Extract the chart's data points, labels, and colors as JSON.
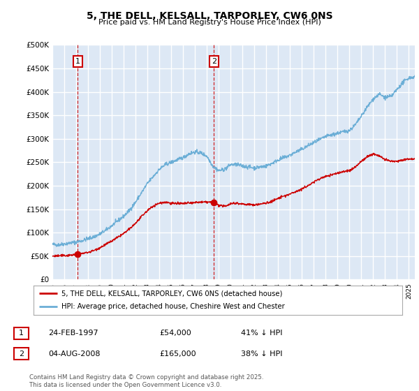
{
  "title": "5, THE DELL, KELSALL, TARPORLEY, CW6 0NS",
  "subtitle": "Price paid vs. HM Land Registry's House Price Index (HPI)",
  "ylim": [
    0,
    500000
  ],
  "yticks": [
    0,
    50000,
    100000,
    150000,
    200000,
    250000,
    300000,
    350000,
    400000,
    450000,
    500000
  ],
  "xlim_start": 1995.0,
  "xlim_end": 2025.5,
  "bg_color": "#dde8f5",
  "grid_color": "#ffffff",
  "hpi_color": "#6baed6",
  "price_color": "#cc0000",
  "dashed_line_color": "#cc0000",
  "transaction1_x": 1997.13,
  "transaction1_y": 54000,
  "transaction2_x": 2008.59,
  "transaction2_y": 165000,
  "legend_price_label": "5, THE DELL, KELSALL, TARPORLEY, CW6 0NS (detached house)",
  "legend_hpi_label": "HPI: Average price, detached house, Cheshire West and Chester",
  "xtick_years": [
    1995,
    1996,
    1997,
    1998,
    1999,
    2000,
    2001,
    2002,
    2003,
    2004,
    2005,
    2006,
    2007,
    2008,
    2009,
    2010,
    2011,
    2012,
    2013,
    2014,
    2015,
    2016,
    2017,
    2018,
    2019,
    2020,
    2021,
    2022,
    2023,
    2024,
    2025
  ],
  "hpi_anchors": [
    [
      1995.0,
      75000
    ],
    [
      1995.5,
      74000
    ],
    [
      1996.0,
      76000
    ],
    [
      1996.5,
      78000
    ],
    [
      1997.0,
      80000
    ],
    [
      1997.5,
      83000
    ],
    [
      1998.0,
      87000
    ],
    [
      1998.5,
      91000
    ],
    [
      1999.0,
      97000
    ],
    [
      1999.5,
      105000
    ],
    [
      2000.0,
      115000
    ],
    [
      2000.5,
      125000
    ],
    [
      2001.0,
      135000
    ],
    [
      2001.5,
      148000
    ],
    [
      2002.0,
      165000
    ],
    [
      2002.5,
      185000
    ],
    [
      2003.0,
      205000
    ],
    [
      2003.5,
      220000
    ],
    [
      2004.0,
      235000
    ],
    [
      2004.5,
      245000
    ],
    [
      2005.0,
      250000
    ],
    [
      2005.5,
      255000
    ],
    [
      2006.0,
      260000
    ],
    [
      2006.5,
      268000
    ],
    [
      2007.0,
      272000
    ],
    [
      2007.5,
      270000
    ],
    [
      2008.0,
      263000
    ],
    [
      2008.5,
      242000
    ],
    [
      2009.0,
      232000
    ],
    [
      2009.5,
      235000
    ],
    [
      2010.0,
      245000
    ],
    [
      2010.5,
      245000
    ],
    [
      2011.0,
      242000
    ],
    [
      2011.5,
      240000
    ],
    [
      2012.0,
      238000
    ],
    [
      2012.5,
      240000
    ],
    [
      2013.0,
      242000
    ],
    [
      2013.5,
      248000
    ],
    [
      2014.0,
      255000
    ],
    [
      2014.5,
      260000
    ],
    [
      2015.0,
      265000
    ],
    [
      2015.5,
      272000
    ],
    [
      2016.0,
      278000
    ],
    [
      2016.5,
      285000
    ],
    [
      2017.0,
      292000
    ],
    [
      2017.5,
      298000
    ],
    [
      2018.0,
      305000
    ],
    [
      2018.5,
      308000
    ],
    [
      2019.0,
      312000
    ],
    [
      2019.5,
      315000
    ],
    [
      2020.0,
      318000
    ],
    [
      2020.5,
      330000
    ],
    [
      2021.0,
      348000
    ],
    [
      2021.5,
      368000
    ],
    [
      2022.0,
      385000
    ],
    [
      2022.5,
      395000
    ],
    [
      2023.0,
      388000
    ],
    [
      2023.5,
      390000
    ],
    [
      2024.0,
      405000
    ],
    [
      2024.5,
      420000
    ],
    [
      2025.0,
      430000
    ],
    [
      2025.5,
      432000
    ]
  ],
  "price_anchors": [
    [
      1995.0,
      50000
    ],
    [
      1995.5,
      50500
    ],
    [
      1996.0,
      51000
    ],
    [
      1996.5,
      52000
    ],
    [
      1997.13,
      54000
    ],
    [
      1997.5,
      55500
    ],
    [
      1998.0,
      58000
    ],
    [
      1998.5,
      62000
    ],
    [
      1999.0,
      68000
    ],
    [
      1999.5,
      75000
    ],
    [
      2000.0,
      82000
    ],
    [
      2000.5,
      90000
    ],
    [
      2001.0,
      98000
    ],
    [
      2001.5,
      108000
    ],
    [
      2002.0,
      120000
    ],
    [
      2002.5,
      134000
    ],
    [
      2003.0,
      147000
    ],
    [
      2003.5,
      157000
    ],
    [
      2004.0,
      163000
    ],
    [
      2004.5,
      165000
    ],
    [
      2005.0,
      163000
    ],
    [
      2005.5,
      162000
    ],
    [
      2006.0,
      162000
    ],
    [
      2006.5,
      163000
    ],
    [
      2007.0,
      164000
    ],
    [
      2007.5,
      165000
    ],
    [
      2008.0,
      165000
    ],
    [
      2008.59,
      165000
    ],
    [
      2009.0,
      158000
    ],
    [
      2009.5,
      156000
    ],
    [
      2010.0,
      162000
    ],
    [
      2010.5,
      163000
    ],
    [
      2011.0,
      161000
    ],
    [
      2011.5,
      160000
    ],
    [
      2012.0,
      159000
    ],
    [
      2012.5,
      161000
    ],
    [
      2013.0,
      163000
    ],
    [
      2013.5,
      167000
    ],
    [
      2014.0,
      173000
    ],
    [
      2014.5,
      178000
    ],
    [
      2015.0,
      182000
    ],
    [
      2015.5,
      188000
    ],
    [
      2016.0,
      193000
    ],
    [
      2016.5,
      200000
    ],
    [
      2017.0,
      208000
    ],
    [
      2017.5,
      215000
    ],
    [
      2018.0,
      220000
    ],
    [
      2018.5,
      223000
    ],
    [
      2019.0,
      227000
    ],
    [
      2019.5,
      230000
    ],
    [
      2020.0,
      232000
    ],
    [
      2020.5,
      240000
    ],
    [
      2021.0,
      252000
    ],
    [
      2021.5,
      262000
    ],
    [
      2022.0,
      268000
    ],
    [
      2022.5,
      264000
    ],
    [
      2023.0,
      255000
    ],
    [
      2023.5,
      252000
    ],
    [
      2024.0,
      252000
    ],
    [
      2024.5,
      255000
    ],
    [
      2025.0,
      257000
    ],
    [
      2025.5,
      258000
    ]
  ]
}
